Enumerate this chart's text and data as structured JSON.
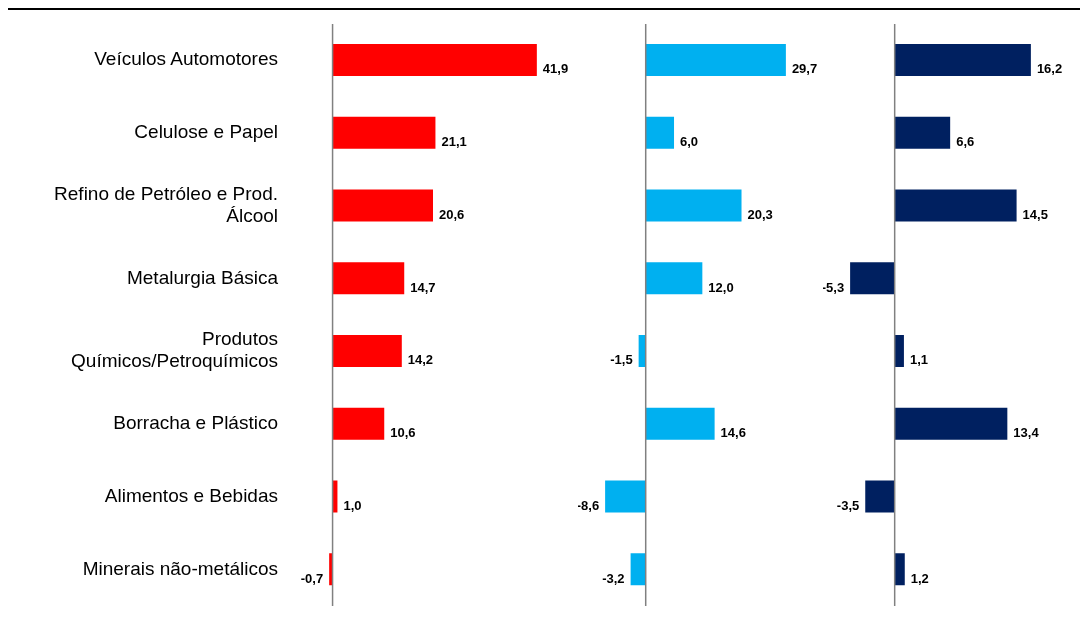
{
  "chart_data": [
    {
      "type": "bar",
      "orientation": "horizontal",
      "categories": [
        "Veículos Automotores",
        "Celulose e Papel",
        "Refino de Petróleo e Prod. Álcool",
        "Metalurgia Básica",
        "Produtos Químicos/Petroquímicos",
        "Borracha e Plástico",
        "Alimentos e Bebidas",
        "Minerais não-metálicos"
      ],
      "values": [
        41.9,
        21.1,
        20.6,
        14.7,
        14.2,
        10.6,
        1.0,
        -0.7
      ],
      "value_labels": [
        "41,9",
        "21,1",
        "20,6",
        "14,7",
        "14,2",
        "10,6",
        "1,0",
        "-0,7"
      ],
      "color": "#ff0000",
      "tick_labels": "y"
    },
    {
      "type": "bar",
      "orientation": "horizontal",
      "categories": [
        null,
        null,
        null,
        null,
        null,
        null,
        null,
        null
      ],
      "values": [
        29.7,
        6.0,
        20.3,
        12.0,
        -1.5,
        14.6,
        -8.6,
        -3.2
      ],
      "value_labels": [
        "29,7",
        "6,0",
        "20,3",
        "12,0",
        "-1,5",
        "14,6",
        "-8,6",
        "-3,2"
      ],
      "color": "#00b0f0",
      "tick_labels": false
    },
    {
      "type": "bar",
      "orientation": "horizontal",
      "categories": [
        null,
        null,
        null,
        null,
        null,
        null,
        null,
        null
      ],
      "values": [
        16.2,
        6.6,
        14.5,
        -5.3,
        1.1,
        13.4,
        -3.5,
        1.2
      ],
      "value_labels": [
        "16,2",
        "6,6",
        "14,5",
        "-5,3",
        "1,1",
        "13,4",
        "-3,5",
        "1,2"
      ],
      "color": "#002060",
      "tick_labels": false
    }
  ]
}
